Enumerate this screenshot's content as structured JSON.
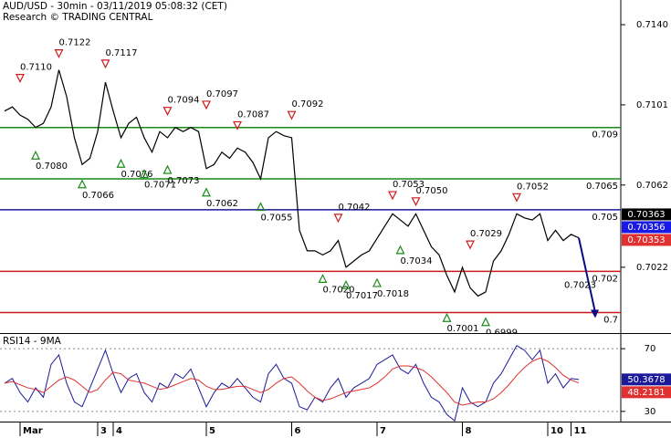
{
  "chart_data": [
    {
      "type": "line",
      "title": "AUD/USD - 30min - 03/11/2019 05:08:32 (CET)",
      "subtitle": "Research © TRADING CENTRAL",
      "categories": [
        null,
        null,
        "Mar",
        null,
        null,
        null,
        null,
        null,
        null,
        null,
        null,
        null,
        "3",
        null,
        "4",
        null,
        null,
        null,
        null,
        null,
        null,
        null,
        null,
        null,
        null,
        null,
        "5",
        null,
        null,
        null,
        null,
        null,
        null,
        null,
        null,
        null,
        null,
        "6",
        null,
        null,
        null,
        null,
        null,
        null,
        null,
        null,
        null,
        null,
        "7",
        null,
        null,
        null,
        null,
        null,
        null,
        null,
        null,
        null,
        null,
        "8",
        null,
        null,
        null,
        null,
        null,
        null,
        null,
        null,
        null,
        null,
        "10",
        null,
        null,
        "11",
        null
      ],
      "series": [
        {
          "color": "#000000",
          "values": [
            0.7098,
            0.71,
            0.7096,
            0.7094,
            0.709,
            0.7092,
            0.71,
            0.7118,
            0.7105,
            0.7085,
            0.7072,
            0.7075,
            0.7088,
            0.7112,
            0.7098,
            0.7085,
            0.7092,
            0.7095,
            0.7085,
            0.7078,
            0.7088,
            0.7085,
            0.709,
            0.7088,
            0.709,
            0.7088,
            0.707,
            0.7072,
            0.7078,
            0.7075,
            0.708,
            0.7078,
            0.7073,
            0.7065,
            0.7085,
            0.7088,
            0.7086,
            0.7085,
            0.704,
            0.703,
            0.703,
            0.7028,
            0.703,
            0.7035,
            0.7022,
            0.7025,
            0.7028,
            0.703,
            0.7036,
            0.7042,
            0.7048,
            0.7045,
            0.7042,
            0.7048,
            0.704,
            0.7032,
            0.7028,
            0.7018,
            0.701,
            0.7022,
            0.7012,
            0.7008,
            0.701,
            0.7025,
            0.703,
            0.7038,
            0.7048,
            0.7046,
            0.7045,
            0.7048,
            0.7035,
            0.704,
            0.7035,
            0.7038,
            0.70363
          ]
        }
      ],
      "ma_values": [
        {
          "value": 0.70356,
          "color": "#1a1ae6"
        },
        {
          "value": 0.70353,
          "color": "#e03030"
        }
      ],
      "levels": [
        {
          "value": 0.709,
          "color": "#1a8a1a"
        },
        {
          "value": 0.7065,
          "color": "#1a8a1a"
        },
        {
          "value": 0.705,
          "color": "#1a1a9a"
        },
        {
          "value": 0.702,
          "color": "#cc1a1a"
        },
        {
          "value": 0.7,
          "color": "#cc1a1a"
        }
      ],
      "pivots": [
        {
          "x": 2,
          "value": 0.711,
          "label": "0.7110",
          "kind": "high"
        },
        {
          "x": 7,
          "value": 0.7122,
          "kind": "high"
        },
        {
          "x": 13,
          "value": 0.7117,
          "kind": "high"
        },
        {
          "x": 21,
          "value": 0.7094,
          "kind": "high"
        },
        {
          "x": 26,
          "value": 0.7097,
          "kind": "high"
        },
        {
          "x": 30,
          "value": 0.7087,
          "kind": "high"
        },
        {
          "x": 37,
          "value": 0.7092,
          "kind": "high"
        },
        {
          "x": 43,
          "value": 0.7042,
          "kind": "high"
        },
        {
          "x": 50,
          "value": 0.7053,
          "kind": "high"
        },
        {
          "x": 53,
          "value": 0.705,
          "label": "0.7050",
          "kind": "high"
        },
        {
          "x": 60,
          "value": 0.7029,
          "kind": "high"
        },
        {
          "x": 66,
          "value": 0.7052,
          "kind": "high"
        },
        {
          "x": 4,
          "value": 0.708,
          "label": "0.7080",
          "kind": "low"
        },
        {
          "x": 10,
          "value": 0.7066,
          "kind": "low"
        },
        {
          "x": 15,
          "value": 0.7076,
          "kind": "low"
        },
        {
          "x": 18,
          "value": 0.7071,
          "kind": "low"
        },
        {
          "x": 21,
          "value": 0.7073,
          "kind": "low"
        },
        {
          "x": 26,
          "value": 0.7062,
          "kind": "low"
        },
        {
          "x": 33,
          "value": 0.7055,
          "kind": "low"
        },
        {
          "x": 41,
          "value": 0.702,
          "label": "0.7020",
          "kind": "low"
        },
        {
          "x": 44,
          "value": 0.7017,
          "kind": "low"
        },
        {
          "x": 48,
          "value": 0.7018,
          "kind": "low"
        },
        {
          "x": 51,
          "value": 0.7034,
          "kind": "low"
        },
        {
          "x": 57,
          "value": 0.7001,
          "kind": "low"
        },
        {
          "x": 62,
          "value": 0.6999,
          "kind": "low"
        }
      ],
      "target": 0.7023,
      "ylim": [
        0.699,
        0.7152
      ],
      "yticks": [
        {
          "value": 0.714,
          "label": "0.7140"
        },
        0.7101,
        0.7062,
        0.7022
      ]
    },
    {
      "type": "line",
      "title": "RSI14 - 9MA",
      "series": [
        {
          "color": "#1a1a9a",
          "values": [
            48,
            51,
            42,
            36,
            45,
            39,
            60,
            66,
            48,
            36,
            33,
            45,
            57,
            69,
            54,
            42,
            51,
            54,
            42,
            36,
            48,
            45,
            54,
            51,
            57,
            45,
            33,
            42,
            48,
            45,
            51,
            45,
            39,
            36,
            54,
            60,
            51,
            48,
            33,
            31,
            39,
            36,
            45,
            51,
            39,
            45,
            48,
            51,
            60,
            63,
            66,
            57,
            54,
            60,
            48,
            39,
            36,
            28,
            24,
            45,
            36,
            33,
            36,
            48,
            54,
            63,
            72,
            69,
            63,
            69,
            48,
            54,
            45,
            51,
            50.3678
          ]
        },
        {
          "color": "#e03030",
          "values": [
            48,
            49,
            47,
            45,
            44,
            42,
            46,
            50,
            52,
            50,
            46,
            42,
            44,
            50,
            55,
            54,
            50,
            49,
            48,
            46,
            44,
            45,
            47,
            49,
            51,
            50,
            46,
            44,
            44,
            45,
            46,
            46,
            44,
            42,
            44,
            48,
            51,
            52,
            48,
            43,
            39,
            37,
            38,
            40,
            42,
            43,
            44,
            45,
            48,
            52,
            57,
            59,
            59,
            58,
            56,
            52,
            47,
            42,
            36,
            34,
            35,
            36,
            36,
            38,
            42,
            47,
            53,
            58,
            62,
            64,
            62,
            58,
            53,
            50,
            48.2181
          ]
        }
      ],
      "ylim": [
        23.5,
        78.8
      ],
      "yticks": [
        70,
        30
      ]
    }
  ]
}
